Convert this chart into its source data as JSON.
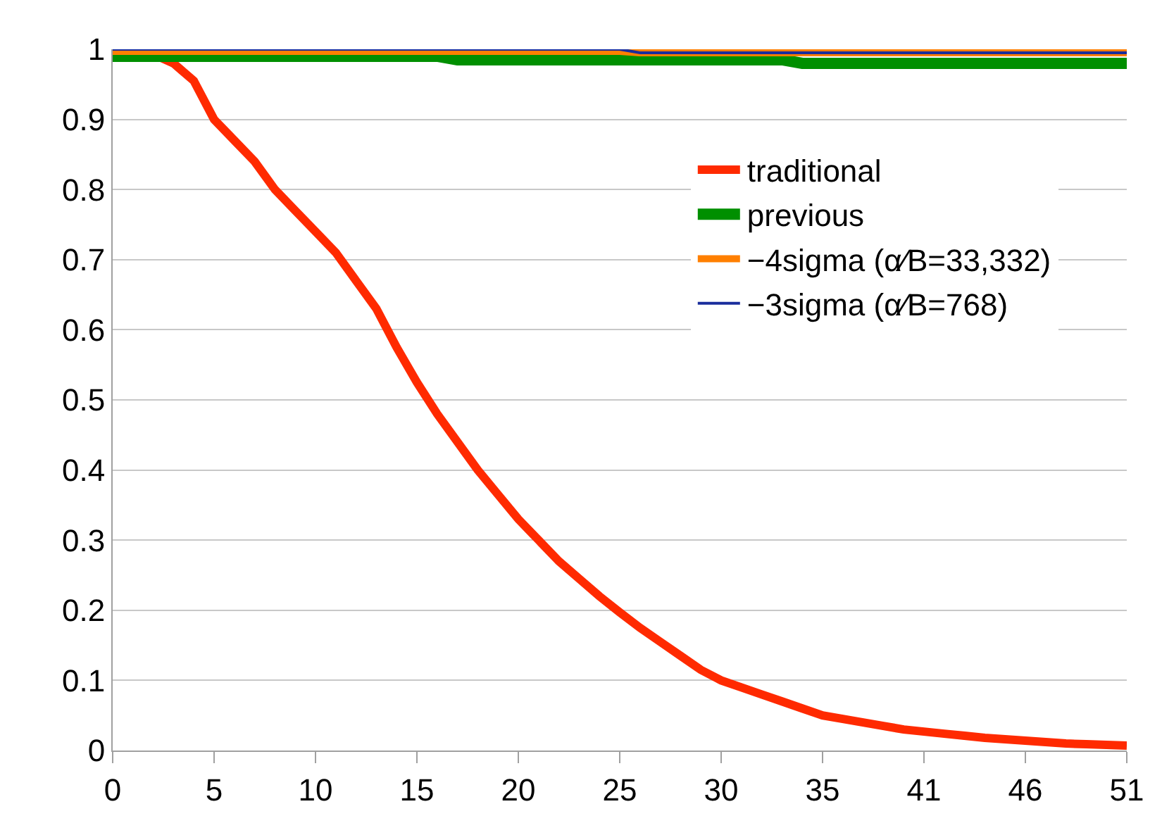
{
  "chart_data": {
    "type": "line",
    "categories": [
      "0",
      null,
      null,
      null,
      null,
      "5",
      null,
      null,
      null,
      null,
      "10",
      null,
      null,
      null,
      null,
      "15",
      null,
      null,
      null,
      null,
      "20",
      null,
      null,
      null,
      null,
      "25",
      null,
      null,
      null,
      null,
      "30",
      null,
      null,
      null,
      null,
      "35",
      null,
      null,
      null,
      null,
      "41",
      null,
      null,
      null,
      null,
      "46",
      null,
      null,
      null,
      null,
      "51"
    ],
    "ylim": [
      0,
      1
    ],
    "yticks": [
      0,
      0.1,
      0.2,
      0.3,
      0.4,
      0.5,
      0.6,
      0.7,
      0.8,
      0.9,
      1
    ],
    "grid": "y",
    "legend": "right",
    "marker": "none",
    "line_style": "solid",
    "series": [
      {
        "name": "traditional",
        "color": "#ff2a00",
        "values": [
          1,
          0.999,
          0.993,
          0.98,
          0.955,
          0.9,
          0.87,
          0.84,
          0.8,
          0.77,
          0.74,
          0.71,
          0.67,
          0.63,
          0.575,
          0.525,
          0.48,
          0.44,
          0.4,
          0.365,
          0.33,
          0.3,
          0.27,
          0.245,
          0.22,
          0.197,
          0.175,
          0.155,
          0.135,
          0.115,
          0.1,
          0.09,
          0.08,
          0.07,
          0.06,
          0.05,
          0.045,
          0.04,
          0.035,
          0.03,
          0.027,
          0.024,
          0.021,
          0.018,
          0.016,
          0.014,
          0.012,
          0.01,
          0.009,
          0.008,
          0.007
        ]
      },
      {
        "name": "previous",
        "color": "#008f00",
        "values": [
          0.99,
          0.99,
          0.99,
          0.99,
          0.99,
          0.99,
          0.99,
          0.99,
          0.99,
          0.99,
          0.99,
          0.99,
          0.99,
          0.99,
          0.99,
          0.99,
          0.99,
          0.985,
          0.985,
          0.985,
          0.985,
          0.985,
          0.985,
          0.985,
          0.985,
          0.985,
          0.985,
          0.985,
          0.985,
          0.985,
          0.985,
          0.985,
          0.985,
          0.985,
          0.98,
          0.98,
          0.98,
          0.98,
          0.98,
          0.98,
          0.98,
          0.98,
          0.98,
          0.98,
          0.98,
          0.98,
          0.98,
          0.98,
          0.98,
          0.98,
          0.98
        ]
      },
      {
        "name": "−4sigma (α∕B=33,332)",
        "color": "#ff7f00",
        "values": [
          0.997,
          0.997,
          0.997,
          0.997,
          0.997,
          0.997,
          0.997,
          0.997,
          0.997,
          0.997,
          0.997,
          0.997,
          0.997,
          0.997,
          0.997,
          0.997,
          0.997,
          0.997,
          0.997,
          0.997,
          0.997,
          0.997,
          0.997,
          0.997,
          0.997,
          0.997,
          0.995,
          0.995,
          0.995,
          0.995,
          0.995,
          0.995,
          0.995,
          0.995,
          0.995,
          0.995,
          0.995,
          0.995,
          0.995,
          0.995,
          0.995,
          0.995,
          0.995,
          0.995,
          0.995,
          0.995,
          0.995,
          0.995,
          0.995,
          0.995,
          0.995
        ]
      },
      {
        "name": "−3sigma (α∕B=768)",
        "color": "#1a2d9c",
        "values": [
          1,
          1,
          1,
          1,
          1,
          1,
          1,
          1,
          1,
          1,
          1,
          1,
          1,
          1,
          1,
          1,
          1,
          1,
          1,
          1,
          1,
          1,
          1,
          1,
          1,
          1,
          0.995,
          0.995,
          0.995,
          0.995,
          0.995,
          0.995,
          0.995,
          0.995,
          0.995,
          0.995,
          0.995,
          0.995,
          0.995,
          0.995,
          0.995,
          0.995,
          0.995,
          0.995,
          0.995,
          0.995,
          0.995,
          0.995,
          0.995,
          0.995,
          0.995
        ]
      }
    ]
  }
}
